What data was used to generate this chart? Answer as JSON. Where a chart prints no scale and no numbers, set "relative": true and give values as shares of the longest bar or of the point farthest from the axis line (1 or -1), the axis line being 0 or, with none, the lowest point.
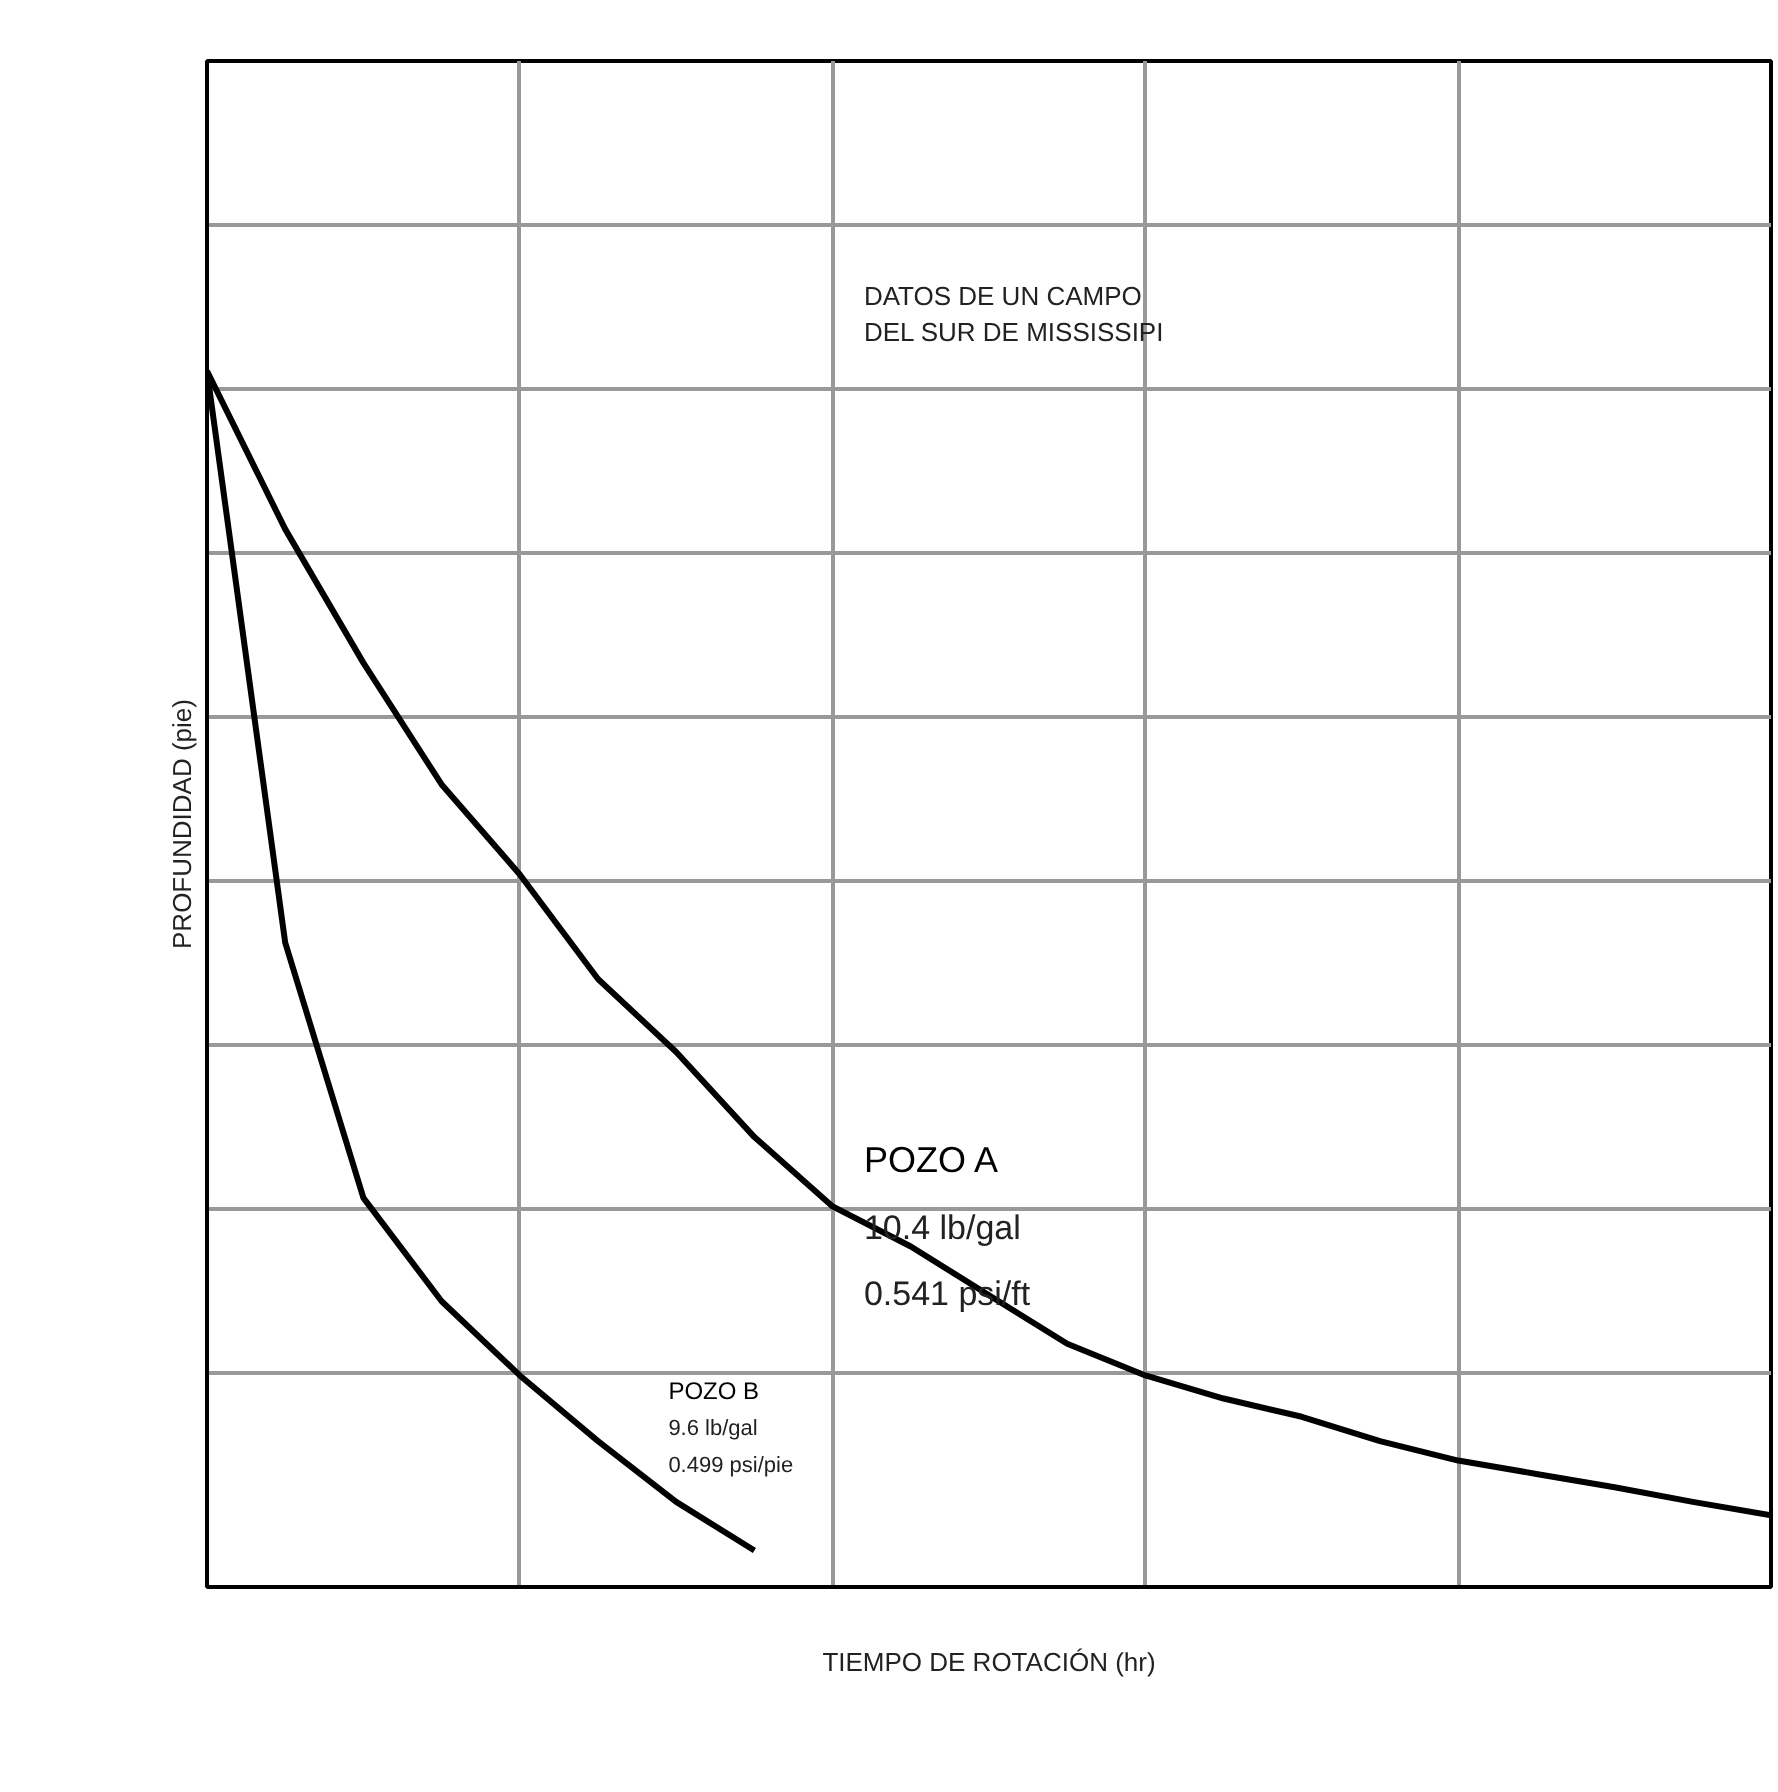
{
  "chart_data": {
    "type": "line",
    "relative": true,
    "xlabel": "TIEMPO DE ROTACIÓN (hr)",
    "ylabel": "PROFUNDIDAD (pie)",
    "categories": [
      null,
      null,
      null,
      null,
      null,
      null,
      null,
      null,
      null,
      null,
      null,
      null,
      null,
      null,
      null,
      null,
      null,
      null,
      null,
      null,
      null
    ],
    "series": [
      {
        "name": "POZO A",
        "color": "#000000",
        "values": [
          1,
          0.87,
          0.76,
          0.66,
          0.586,
          0.5,
          0.44,
          0.37,
          0.313,
          0.28,
          0.24,
          0.2,
          0.174,
          0.155,
          0.14,
          0.12,
          0.104,
          0.093,
          0.082,
          0.07,
          0.059
        ]
      },
      {
        "name": "POZO B",
        "color": "#000000",
        "values": [
          1,
          0.53,
          0.32,
          0.235,
          0.174,
          0.12,
          0.07,
          0.03,
          null,
          null,
          null,
          null,
          null,
          null,
          null,
          null,
          null,
          null,
          null,
          null,
          null
        ]
      }
    ],
    "annotations": [
      "DATOS DE UN CAMPO\nDEL SUR DE MISSISSIPI",
      "10.4 lb/gal",
      "0.541  psi/ft",
      "9.6 lb/gal",
      "0.499 psi/pie"
    ],
    "grid": true,
    "marker": "none",
    "line_style": "solid"
  }
}
